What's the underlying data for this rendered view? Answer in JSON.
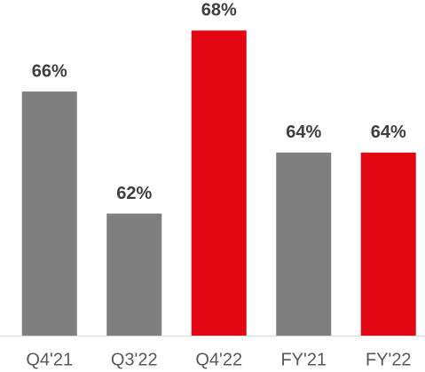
{
  "chart_data": {
    "type": "bar",
    "categories": [
      "Q4'21",
      "Q3'22",
      "Q4'22",
      "FY'21",
      "FY'22"
    ],
    "values": [
      66,
      62,
      68,
      64,
      64
    ],
    "value_labels": [
      "66%",
      "62%",
      "68%",
      "64%",
      "64%"
    ],
    "colors": [
      "#7f7f7f",
      "#7f7f7f",
      "#e30613",
      "#7f7f7f",
      "#e30613"
    ],
    "ylim": [
      58,
      69
    ]
  }
}
